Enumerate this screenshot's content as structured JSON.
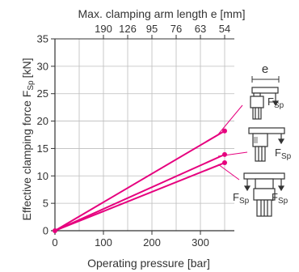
{
  "chart_data": {
    "type": "line",
    "xlabel": "Operating pressure [bar]",
    "ylabel": "Effective clamping force F",
    "ylabel_sub": "Sp",
    "ylabel_unit": "[kN]",
    "top_axis_label": "Max. clamping arm length e [mm]",
    "xlim": [
      0,
      370
    ],
    "ylim": [
      0,
      35
    ],
    "x_ticks": [
      0,
      100,
      200,
      300
    ],
    "y_ticks": [
      0,
      5,
      10,
      15,
      20,
      25,
      30,
      35
    ],
    "top_ticks": [
      {
        "label": "190",
        "pressure": 100
      },
      {
        "label": "126",
        "pressure": 150
      },
      {
        "label": "95",
        "pressure": 200
      },
      {
        "label": "76",
        "pressure": 250
      },
      {
        "label": "63",
        "pressure": 300
      },
      {
        "label": "54",
        "pressure": 350
      }
    ],
    "grid": true,
    "series": [
      {
        "x": [
          0,
          350
        ],
        "y": [
          0,
          18.2
        ]
      },
      {
        "x": [
          0,
          350
        ],
        "y": [
          0,
          13.9
        ]
      },
      {
        "x": [
          0,
          350
        ],
        "y": [
          0,
          12.4
        ]
      }
    ],
    "line_color": "#e6007e",
    "annotations": {
      "dimension_label": "e",
      "force_label": "F",
      "force_sub": "Sp"
    }
  }
}
